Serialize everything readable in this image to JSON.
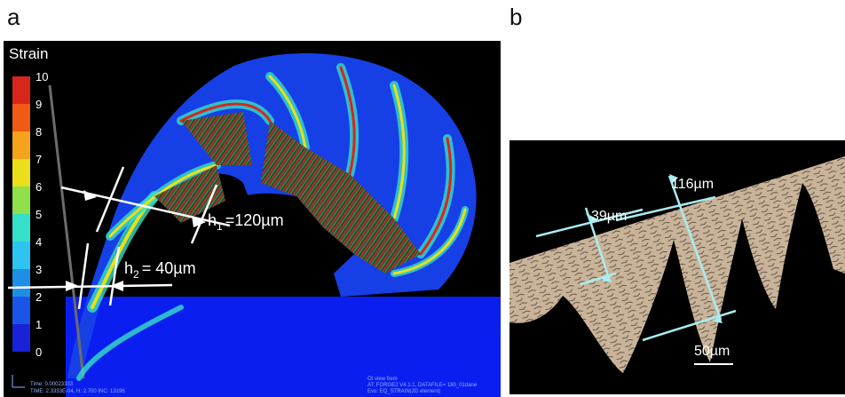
{
  "panel_a": {
    "letter": "a",
    "legend": {
      "title": "Strain",
      "ticks": [
        "10",
        "9",
        "8",
        "7",
        "6",
        "5",
        "4",
        "3",
        "2",
        "1",
        "0"
      ],
      "colors": [
        "#d8261c",
        "#f05a14",
        "#f5a31a",
        "#eadf1a",
        "#8fe04a",
        "#34e0c9",
        "#2ec3f0",
        "#1e8fe5",
        "#1a55e8",
        "#1a22d8"
      ]
    },
    "annotations": {
      "h1_label": "h",
      "h1_sub": "1",
      "h1_value": "=120µm",
      "h2_label": "h",
      "h2_sub": "2",
      "h2_value": "= 40µm"
    },
    "footer": {
      "line1": "Time: 0.00023333",
      "line2": "TIME: 2.3333E-04, H: 2.700   INC: 13196",
      "right1": "Ot view frem",
      "right2": "AT:  FORGE2  V4.1.1, DATAFILE= 180_01dane",
      "right3": "Evo: EQ_STRAIN(2D element)"
    },
    "colors": {
      "background": "#000000",
      "workpiece": "#0a1ef0",
      "chip": "#1640e6"
    }
  },
  "panel_b": {
    "letter": "b",
    "annotations": {
      "w1": "39µm",
      "w2": "116µm",
      "scale": "50µm"
    },
    "colors": {
      "background": "#000000",
      "chip": "#c9b49a",
      "lines": "#a8ecf0"
    }
  }
}
